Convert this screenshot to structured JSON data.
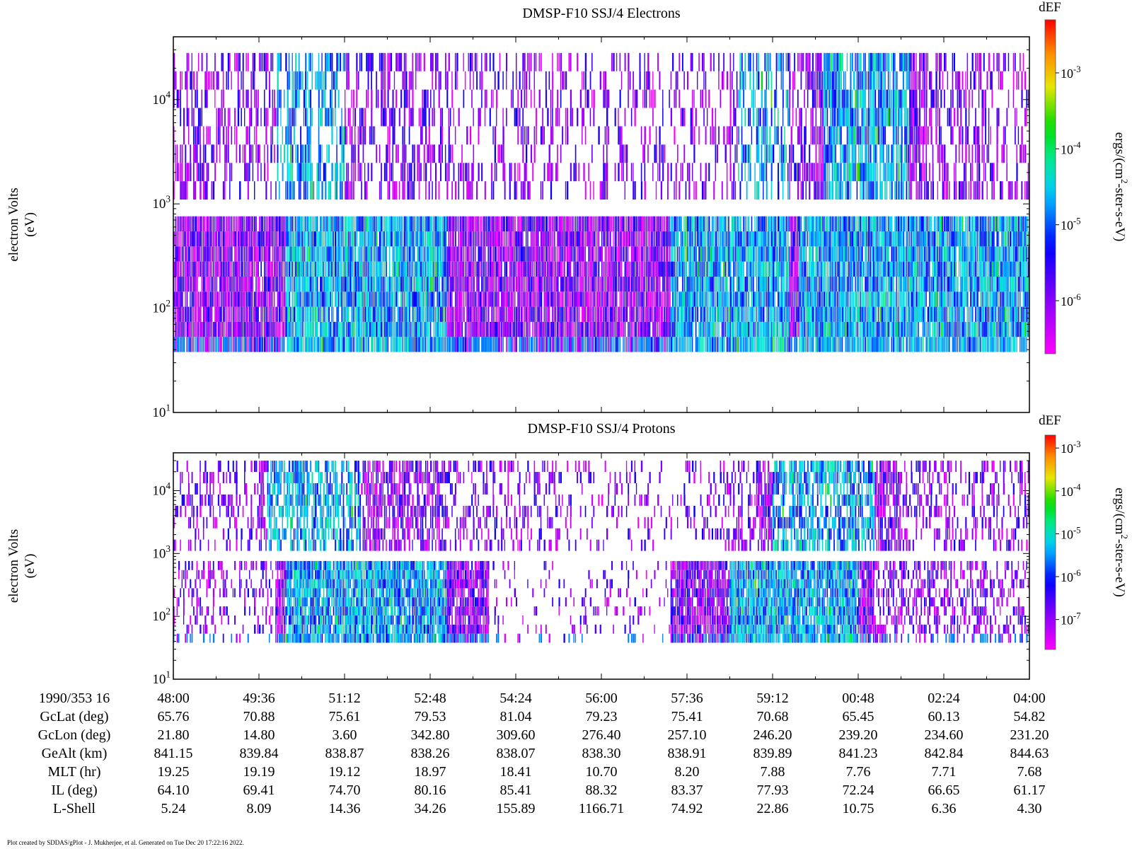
{
  "chart_data": [
    {
      "type": "heatmap",
      "title": "DMSP-F10 SSJ/4 Electrons",
      "ylabel": "electron Volts",
      "ylabel_unit": "(eV)",
      "y_scale": "log",
      "ylim": [
        10,
        40000
      ],
      "y_ticks": [
        {
          "base": "10",
          "exp": "1",
          "value": 10
        },
        {
          "base": "10",
          "exp": "2",
          "value": 100
        },
        {
          "base": "10",
          "exp": "3",
          "value": 1000
        },
        {
          "base": "10",
          "exp": "4",
          "value": 10000
        }
      ],
      "colorbar": {
        "title": "dEF",
        "label_parts": [
          "ergs/(cm",
          "2",
          "-ster-s-eV)"
        ],
        "scale": "log",
        "range": [
          2e-07,
          0.005
        ],
        "ticks": [
          {
            "base": "10",
            "exp": "-6",
            "value": 1e-06
          },
          {
            "base": "10",
            "exp": "-5",
            "value": 1e-05
          },
          {
            "base": "10",
            "exp": "-4",
            "value": 0.0001
          },
          {
            "base": "10",
            "exp": "-3",
            "value": 0.001
          }
        ]
      },
      "bands": [
        {
          "e_low": 1100,
          "e_high": 28000,
          "level": "sparse",
          "active": [
            [
              0.0,
              0.13,
              0.45
            ],
            [
              0.13,
              0.3,
              0.55
            ],
            [
              0.3,
              0.45,
              0.4
            ],
            [
              0.45,
              0.65,
              0.3
            ],
            [
              0.65,
              0.75,
              0.55
            ],
            [
              0.75,
              0.88,
              0.85
            ],
            [
              0.88,
              0.95,
              0.5
            ],
            [
              0.95,
              1.0,
              0.35
            ]
          ],
          "intense": [
            [
              0.12,
              0.2
            ],
            [
              0.66,
              0.72
            ],
            [
              0.76,
              0.86
            ]
          ]
        },
        {
          "e_low": 38,
          "e_high": 760,
          "level": "dense",
          "active": [
            [
              0.0,
              1.0,
              0.97
            ]
          ],
          "intense": [
            [
              0.13,
              0.32
            ],
            [
              0.58,
              0.72
            ],
            [
              0.73,
              1.0
            ]
          ]
        }
      ]
    },
    {
      "type": "heatmap",
      "title": "DMSP-F10 SSJ/4 Protons",
      "ylabel": "electron Volts",
      "ylabel_unit": "(eV)",
      "y_scale": "log",
      "ylim": [
        10,
        40000
      ],
      "y_ticks": [
        {
          "base": "10",
          "exp": "1",
          "value": 10
        },
        {
          "base": "10",
          "exp": "2",
          "value": 100
        },
        {
          "base": "10",
          "exp": "3",
          "value": 1000
        },
        {
          "base": "10",
          "exp": "4",
          "value": 10000
        }
      ],
      "colorbar": {
        "title": "dEF",
        "label_parts": [
          "ergs/(cm",
          "2",
          "-ster-s-eV)"
        ],
        "scale": "log",
        "range": [
          2e-08,
          0.002
        ],
        "ticks": [
          {
            "base": "10",
            "exp": "-7",
            "value": 1e-07
          },
          {
            "base": "10",
            "exp": "-6",
            "value": 1e-06
          },
          {
            "base": "10",
            "exp": "-5",
            "value": 1e-05
          },
          {
            "base": "10",
            "exp": "-4",
            "value": 0.0001
          },
          {
            "base": "10",
            "exp": "-3",
            "value": 0.001
          }
        ]
      },
      "bands": [
        {
          "e_low": 1100,
          "e_high": 30000,
          "level": "sparse",
          "active": [
            [
              0.0,
              0.1,
              0.3
            ],
            [
              0.1,
              0.32,
              0.65
            ],
            [
              0.32,
              0.45,
              0.35
            ],
            [
              0.45,
              0.62,
              0.2
            ],
            [
              0.62,
              0.68,
              0.35
            ],
            [
              0.68,
              0.85,
              0.7
            ],
            [
              0.85,
              1.0,
              0.35
            ]
          ],
          "intense": [
            [
              0.11,
              0.22
            ],
            [
              0.7,
              0.82
            ]
          ]
        },
        {
          "e_low": 38,
          "e_high": 760,
          "level": "dense",
          "active": [
            [
              0.0,
              0.12,
              0.3
            ],
            [
              0.12,
              0.37,
              0.95
            ],
            [
              0.37,
              0.58,
              0.15
            ],
            [
              0.58,
              0.82,
              0.95
            ],
            [
              0.82,
              1.0,
              0.45
            ]
          ],
          "intense": [
            [
              0.13,
              0.32
            ],
            [
              0.65,
              0.8
            ]
          ]
        }
      ]
    }
  ],
  "time_axis": {
    "row_label": "1990/353 16",
    "ticks": [
      "48:00",
      "49:36",
      "51:12",
      "52:48",
      "54:24",
      "56:00",
      "57:36",
      "59:12",
      "00:48",
      "02:24",
      "04:00"
    ]
  },
  "ephemeris": [
    {
      "label": "GcLat (deg)",
      "values": [
        "65.76",
        "70.88",
        "75.61",
        "79.53",
        "81.04",
        "79.23",
        "75.41",
        "70.68",
        "65.45",
        "60.13",
        "54.82"
      ]
    },
    {
      "label": "GcLon (deg)",
      "values": [
        "21.80",
        "14.80",
        "3.60",
        "342.80",
        "309.60",
        "276.40",
        "257.10",
        "246.20",
        "239.20",
        "234.60",
        "231.20"
      ]
    },
    {
      "label": "GeAlt (km)",
      "values": [
        "841.15",
        "839.84",
        "838.87",
        "838.26",
        "838.07",
        "838.30",
        "838.91",
        "839.89",
        "841.23",
        "842.84",
        "844.63"
      ]
    },
    {
      "label": "MLT (hr)",
      "values": [
        "19.25",
        "19.19",
        "19.12",
        "18.97",
        "18.41",
        "10.70",
        "8.20",
        "7.88",
        "7.76",
        "7.71",
        "7.68"
      ]
    },
    {
      "label": "IL (deg)",
      "values": [
        "64.10",
        "69.41",
        "74.70",
        "80.16",
        "85.41",
        "88.32",
        "83.37",
        "77.93",
        "72.24",
        "66.65",
        "61.17"
      ]
    },
    {
      "label": "L-Shell",
      "values": [
        "5.24",
        "8.09",
        "14.36",
        "34.26",
        "155.89",
        "1166.71",
        "74.92",
        "22.86",
        "10.75",
        "6.36",
        "4.30"
      ]
    }
  ],
  "footer": "Plot created by SDDAS/gPlot - J. Mukherjee, et al.  Generated on Tue Dec 20 17:22:16 2022."
}
